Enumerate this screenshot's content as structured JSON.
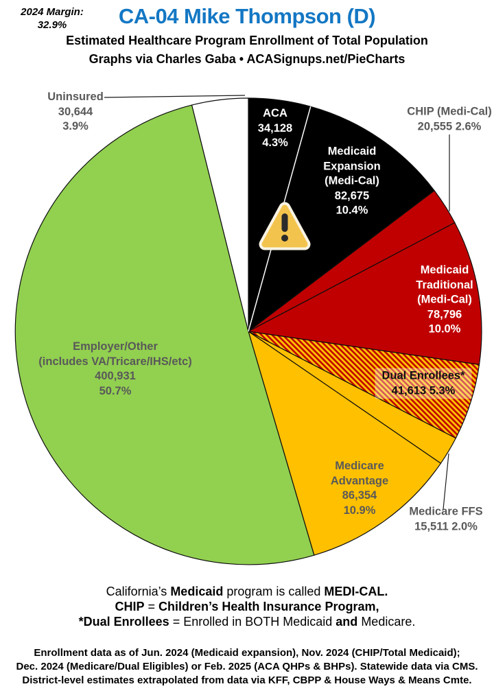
{
  "header": {
    "margin_label": "2024 Margin:",
    "margin_value": "32.9%",
    "title": "CA-04 Mike Thompson (D)",
    "subtitle": "Estimated Healthcare Program Enrollment of Total Population",
    "credit": "Graphs via Charles Gaba   •   ACASignups.net/PieCharts"
  },
  "chart_data": {
    "type": "pie",
    "title": "CA-04 Mike Thompson (D)",
    "subtitle": "Estimated Healthcare Program Enrollment of Total Population",
    "start_angle_deg": 0,
    "direction": "clockwise",
    "colors": {
      "black": "#000000",
      "red": "#C00000",
      "gold": "#FFC000",
      "green": "#92D050",
      "white": "#FFFFFF",
      "title_blue": "#1377C4",
      "label_gray": "#595959"
    },
    "slices": [
      {
        "key": "aca",
        "label": "ACA",
        "label_lines": [
          "ACA"
        ],
        "value": 34128,
        "value_text": "34,128",
        "pct": 4.3,
        "pct_text": "4.3%",
        "color": "#000000",
        "inline_stats": false
      },
      {
        "key": "expansion",
        "label": "Medicaid Expansion (Medi-Cal)",
        "label_lines": [
          "Medicaid",
          "Expansion",
          "(Medi-Cal)"
        ],
        "value": 82675,
        "value_text": "82,675",
        "pct": 10.4,
        "pct_text": "10.4%",
        "color": "#000000",
        "inline_stats": false
      },
      {
        "key": "chip",
        "label": "CHIP (Medi-Cal)",
        "label_lines": [
          "CHIP (Medi-Cal)"
        ],
        "value": 20555,
        "value_text": "20,555",
        "pct": 2.6,
        "pct_text": "2.6%",
        "color": "#C00000",
        "inline_stats": true
      },
      {
        "key": "traditional",
        "label": "Medicaid Traditional (Medi-Cal)",
        "label_lines": [
          "Medicaid",
          "Traditional",
          "(Medi-Cal)"
        ],
        "value": 78796,
        "value_text": "78,796",
        "pct": 10.0,
        "pct_text": "10.0%",
        "color": "#C00000",
        "inline_stats": false
      },
      {
        "key": "dual",
        "label": "Dual Enrollees*",
        "label_lines": [
          "Dual Enrollees*"
        ],
        "value": 41613,
        "value_text": "41,613",
        "pct": 5.3,
        "pct_text": "5.3%",
        "color": "hatch",
        "inline_stats": true
      },
      {
        "key": "ffs",
        "label": "Medicare FFS",
        "label_lines": [
          "Medicare FFS"
        ],
        "value": 15511,
        "value_text": "15,511",
        "pct": 2.0,
        "pct_text": "2.0%",
        "color": "#FFC000",
        "inline_stats": true
      },
      {
        "key": "advantage",
        "label": "Medicare Advantage",
        "label_lines": [
          "Medicare",
          "Advantage"
        ],
        "value": 86354,
        "value_text": "86,354",
        "pct": 10.9,
        "pct_text": "10.9%",
        "color": "#FFC000",
        "inline_stats": false
      },
      {
        "key": "employer",
        "label": "Employer/Other (includes VA/Tricare/IHS/etc)",
        "label_lines": [
          "Employer/Other",
          "(includes VA/Tricare/IHS/etc)"
        ],
        "value": 400931,
        "value_text": "400,931",
        "pct": 50.7,
        "pct_text": "50.7%",
        "color": "#92D050",
        "inline_stats": false
      },
      {
        "key": "uninsured",
        "label": "Uninsured",
        "label_lines": [
          "Uninsured"
        ],
        "value": 30644,
        "value_text": "30,644",
        "pct": 3.9,
        "pct_text": "3.9%",
        "color": "#FFFFFF",
        "inline_stats": false
      }
    ],
    "warning_icon": "warning-triangle"
  },
  "notes": {
    "lines": [
      {
        "segments": [
          {
            "text": "California’s ",
            "bold": false
          },
          {
            "text": "Medicaid",
            "bold": true
          },
          {
            "text": " program is called ",
            "bold": false
          },
          {
            "text": "MEDI-CAL.",
            "bold": true
          }
        ]
      },
      {
        "segments": [
          {
            "text": "CHIP",
            "bold": true
          },
          {
            "text": " = ",
            "bold": false
          },
          {
            "text": "Children’s Health Insurance Program,",
            "bold": true
          }
        ]
      },
      {
        "segments": [
          {
            "text": "*Dual Enrollees",
            "bold": true
          },
          {
            "text": " = Enrolled in BOTH Medicaid ",
            "bold": false
          },
          {
            "text": "and",
            "bold": true
          },
          {
            "text": " Medicare.",
            "bold": false
          }
        ]
      }
    ]
  },
  "footer": {
    "lines": [
      "Enrollment data as of Jun. 2024 (Medicaid expansion), Nov. 2024 (CHIP/Total Medicaid);",
      "Dec. 2024 (Medicare/Dual Eligibles) or Feb. 2025 (ACA QHPs & BHPs). Statewide data via CMS.",
      "District-level estimates extrapolated from data via KFF, CBPP & House Ways & Means Cmte."
    ]
  }
}
